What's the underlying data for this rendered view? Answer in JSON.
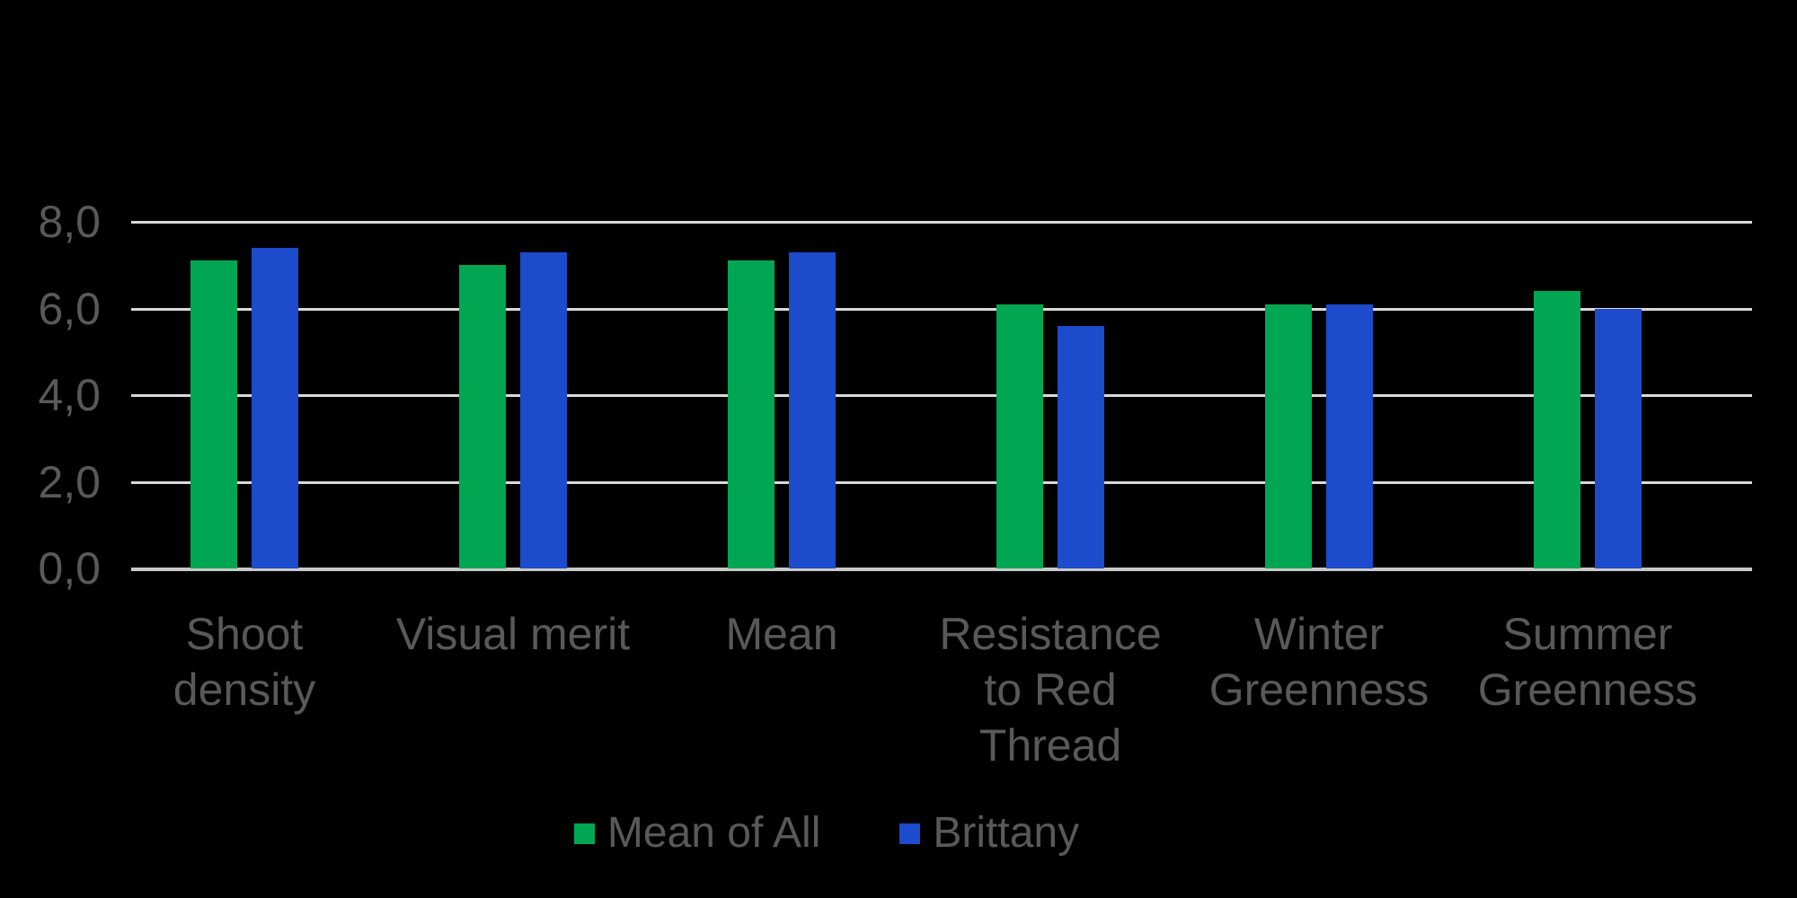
{
  "chart_data": {
    "type": "bar",
    "title": "",
    "categories": [
      [
        "Shoot",
        "density"
      ],
      [
        "Visual merit"
      ],
      [
        "Mean"
      ],
      [
        "Resistance",
        "to Red",
        "Thread"
      ],
      [
        "Winter",
        "Greenness"
      ],
      [
        "Summer",
        "Greenness"
      ]
    ],
    "series": [
      {
        "name": "Mean of All",
        "color": "#00A651",
        "values": [
          7.1,
          7.0,
          7.1,
          6.1,
          6.1,
          6.4
        ]
      },
      {
        "name": "Brittany",
        "color": "#1C4BCC",
        "values": [
          7.4,
          7.3,
          7.3,
          5.6,
          6.1,
          6.0
        ]
      }
    ],
    "y_ticks": [
      {
        "label": "8,0",
        "value": 8
      },
      {
        "label": "6,0",
        "value": 6
      },
      {
        "label": "4,0",
        "value": 4
      },
      {
        "label": "2,0",
        "value": 2
      },
      {
        "label": "0,0",
        "value": 0
      }
    ],
    "ylim": [
      0,
      8
    ],
    "grid": true,
    "legend_position": "bottom",
    "colors": {
      "background": "#000000",
      "text": "#595959",
      "gridline": "#D9D9D9",
      "axis_line": "#C9C9C9"
    }
  }
}
